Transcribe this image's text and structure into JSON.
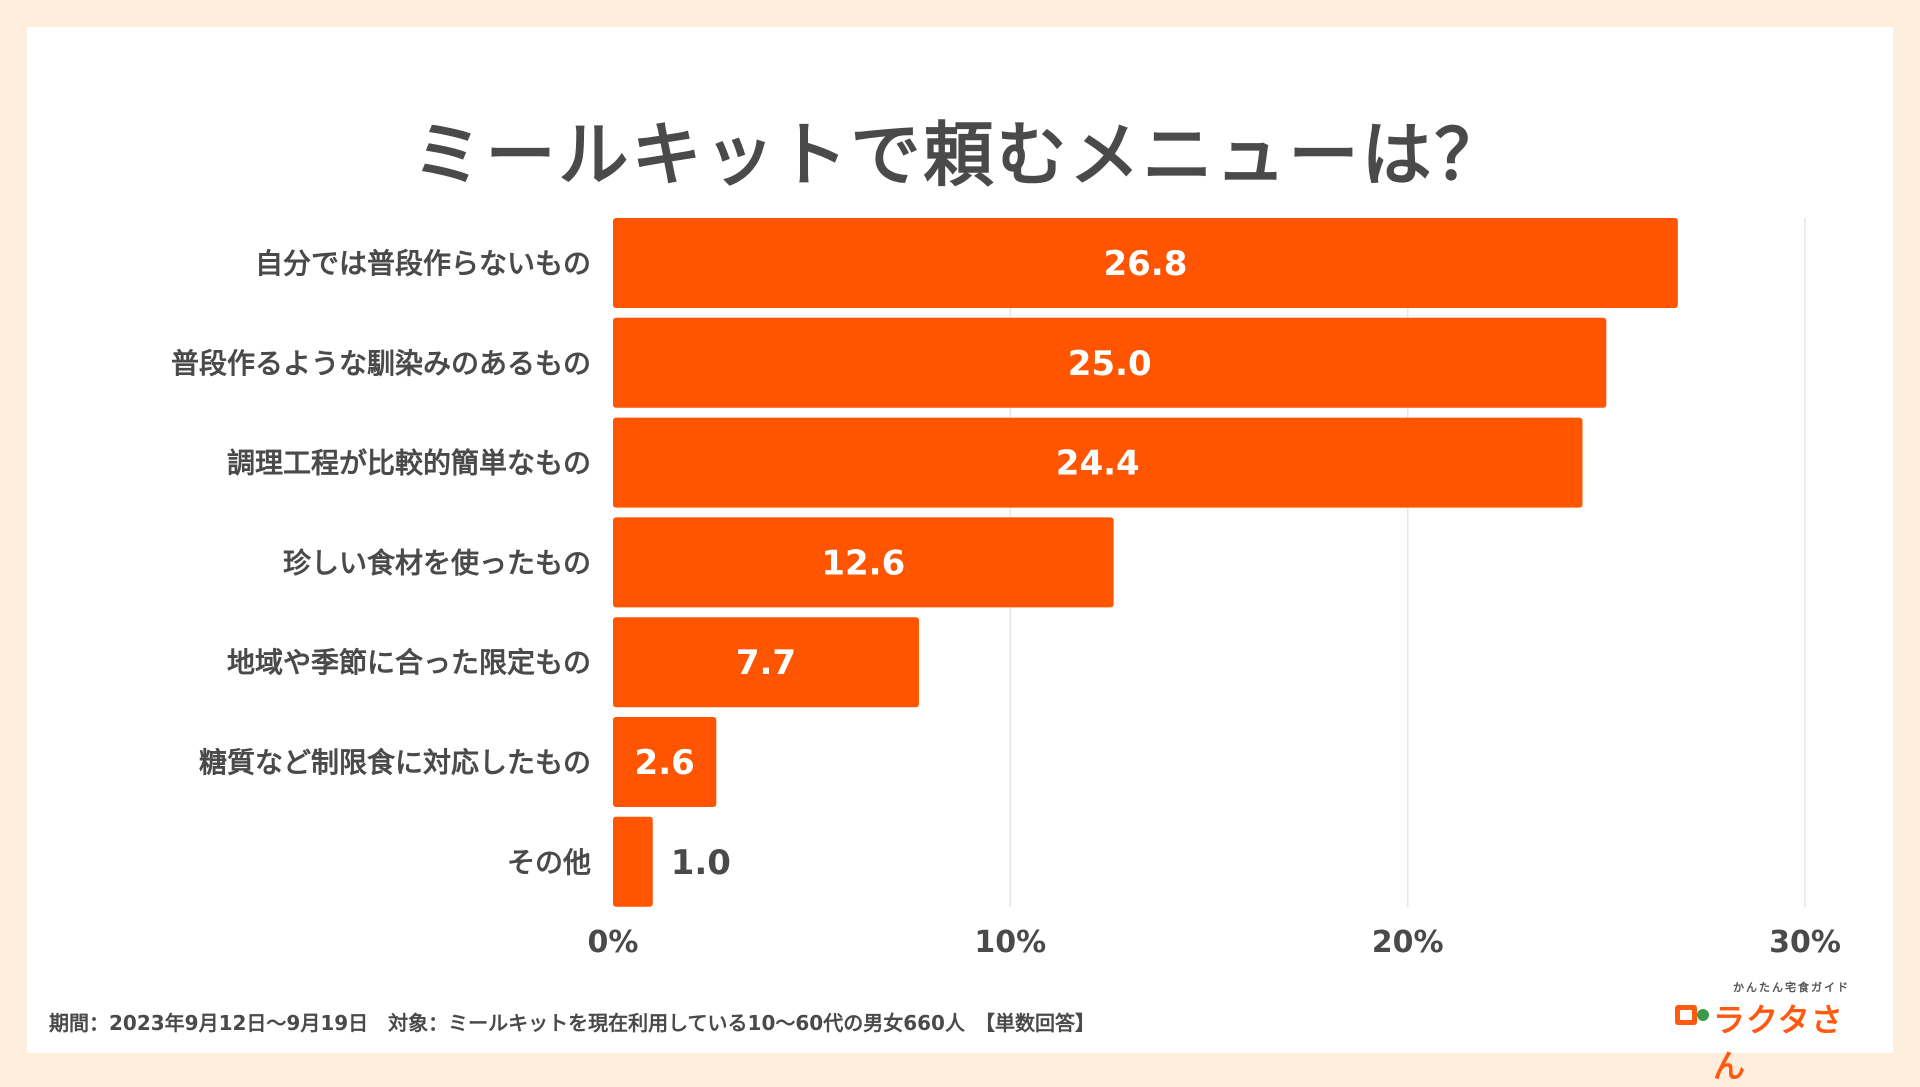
{
  "title": "ミールキットで頼むメニューは？",
  "footer": {
    "text": "期間：2023年9月12日〜9月19日　対象：ミールキットを現在利用している10〜60代の男女660人　【単数回答】"
  },
  "logo": {
    "sub": "かんたん宅食ガイド",
    "main": "ラクタさん"
  },
  "colors": {
    "bar": "#ff5500",
    "grid": "#e6e6e6",
    "text": "#4a4a4a",
    "page_bg": "#fdeedd"
  },
  "chart_data": {
    "type": "bar",
    "orientation": "horizontal",
    "categories": [
      "自分では普段作らないもの",
      "普段作るような馴染みのあるもの",
      "調理工程が比較的簡単なもの",
      "珍しい食材を使ったもの",
      "地域や季節に合った限定もの",
      "糖質など制限食に対応したもの",
      "その他"
    ],
    "values": [
      26.8,
      25.0,
      24.4,
      12.6,
      7.7,
      2.6,
      1.0
    ],
    "value_labels": [
      "26.8",
      "25.0",
      "24.4",
      "12.6",
      "7.7",
      "2.6",
      "1.0"
    ],
    "xlim": [
      0,
      30
    ],
    "ticks": [
      0,
      10,
      20,
      30
    ],
    "tick_labels": [
      "0%",
      "10%",
      "20%",
      "30%"
    ],
    "grid": true,
    "xlabel": "",
    "ylabel": ""
  }
}
